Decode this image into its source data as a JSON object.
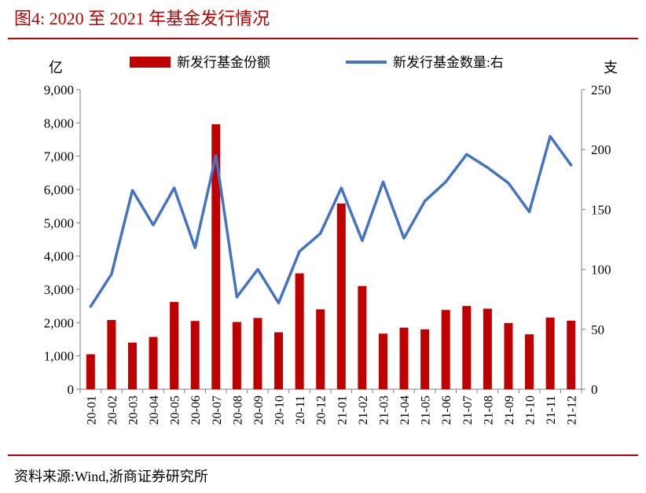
{
  "header": {
    "title": "图4:   2020 至 2021 年基金发行情况"
  },
  "footer": {
    "source": "资料来源:Wind,浙商证券研究所"
  },
  "chart_data": {
    "type": "bar+line",
    "categories": [
      "20-01",
      "20-02",
      "20-03",
      "20-04",
      "20-05",
      "20-06",
      "20-07",
      "20-08",
      "20-09",
      "20-10",
      "20-11",
      "20-12",
      "21-01",
      "21-02",
      "21-03",
      "21-04",
      "21-05",
      "21-06",
      "21-07",
      "21-08",
      "21-09",
      "21-10",
      "21-11",
      "21-12"
    ],
    "left_unit": "亿",
    "right_unit": "支",
    "ylim_left": [
      0,
      9000
    ],
    "ylim_right": [
      0,
      250
    ],
    "yticks_left": [
      "0",
      "1,000",
      "2,000",
      "3,000",
      "4,000",
      "5,000",
      "6,000",
      "7,000",
      "8,000",
      "9,000"
    ],
    "yticks_right": [
      "0",
      "50",
      "100",
      "150",
      "200",
      "250"
    ],
    "series": [
      {
        "name": "新发行基金份额",
        "type": "bar",
        "axis": "left",
        "color": "#c00000",
        "values": [
          1050,
          2080,
          1400,
          1570,
          2620,
          2050,
          7960,
          2020,
          2140,
          1710,
          3480,
          2400,
          5580,
          3100,
          1670,
          1850,
          1800,
          2380,
          2500,
          2420,
          1990,
          1650,
          2150,
          2060
        ]
      },
      {
        "name": "新发行基金数量:右",
        "type": "line",
        "axis": "right",
        "color": "#4472c4",
        "values": [
          69,
          96,
          166,
          137,
          168,
          118,
          195,
          77,
          100,
          72,
          115,
          130,
          168,
          124,
          173,
          126,
          157,
          173,
          196,
          185,
          172,
          148,
          211,
          187
        ]
      }
    ],
    "legend_position": "top",
    "grid": false
  }
}
